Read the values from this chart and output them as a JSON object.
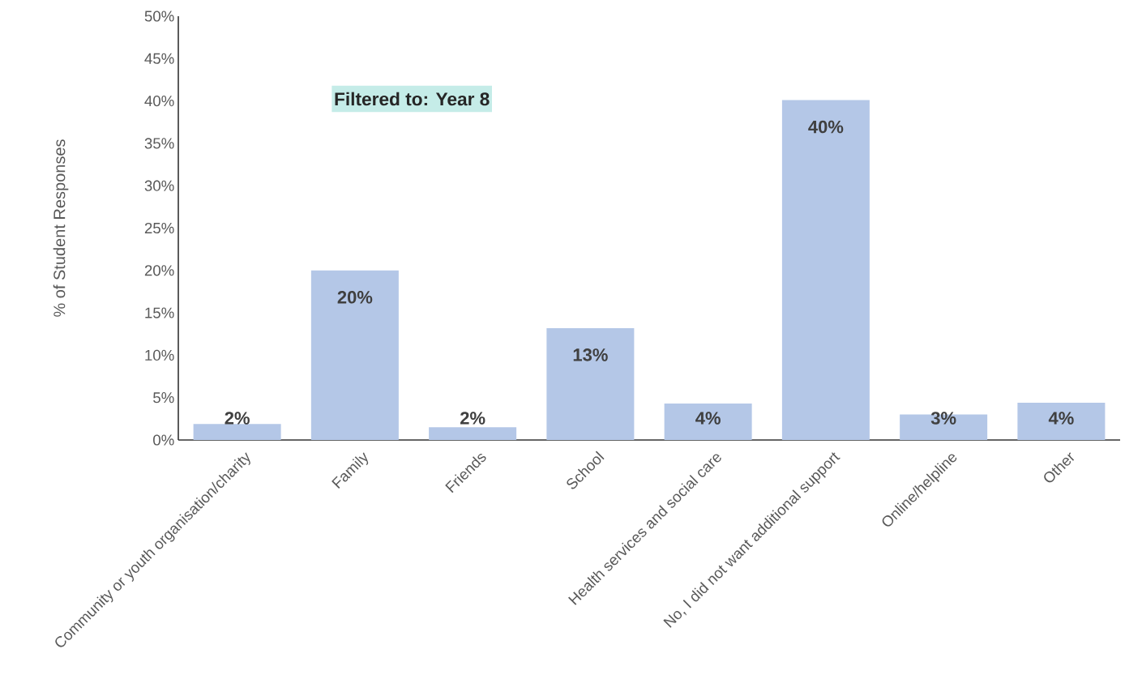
{
  "chart_data": {
    "type": "bar",
    "ylabel": "% of Student Responses",
    "categories": [
      "Community or youth organisation/charity",
      "Family",
      "Friends",
      "School",
      "Health services and social care",
      "No, I did not want additional support",
      "Online/helpline",
      "Other"
    ],
    "values": [
      1.9,
      20.0,
      1.5,
      13.2,
      4.3,
      40.1,
      3.0,
      4.4
    ],
    "value_labels": [
      "2%",
      "20%",
      "2%",
      "13%",
      "4%",
      "40%",
      "3%",
      "4%"
    ],
    "color": "#b4c7e7",
    "ylim": [
      0,
      50
    ],
    "yticks": [
      {
        "value": 0,
        "label": "0%"
      },
      {
        "value": 5,
        "label": "5%"
      },
      {
        "value": 10,
        "label": "10%"
      },
      {
        "value": 15,
        "label": "15%"
      },
      {
        "value": 20,
        "label": "20%"
      },
      {
        "value": 25,
        "label": "25%"
      },
      {
        "value": 30,
        "label": "30%"
      },
      {
        "value": 35,
        "label": "35%"
      },
      {
        "value": 40,
        "label": "40%"
      },
      {
        "value": 45,
        "label": "45%"
      },
      {
        "value": 50,
        "label": "50%"
      }
    ],
    "annotations": [
      "Filtered to: Year 8"
    ]
  }
}
